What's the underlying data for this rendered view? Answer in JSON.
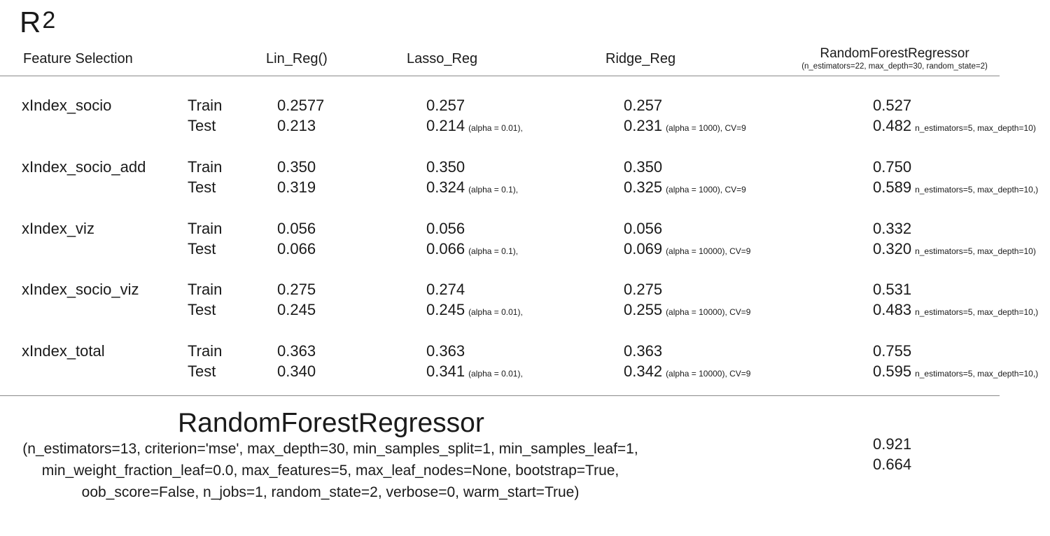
{
  "title": "R",
  "title_sup": "2",
  "headers": {
    "feature_selection": "Feature Selection",
    "lin": "Lin_Reg()",
    "lasso": "Lasso_Reg",
    "ridge": "Ridge_Reg",
    "rf": "RandomForestRegressor",
    "rf_params": "(n_estimators=22, max_depth=30, random_state=2)"
  },
  "rows": [
    {
      "feature": "xIndex_socio",
      "train_label": "Train",
      "test_label": "Test",
      "lin": {
        "train": "0.2577",
        "test": "0.213"
      },
      "lasso": {
        "train": "0.257",
        "test": "0.214",
        "note": "(alpha = 0.01),"
      },
      "ridge": {
        "train": "0.257",
        "test": "0.231",
        "note": "(alpha = 1000), CV=9"
      },
      "rf": {
        "train": "0.527",
        "test": "0.482",
        "note": "n_estimators=5, max_depth=10)"
      }
    },
    {
      "feature": "xIndex_socio_add",
      "train_label": "Train",
      "test_label": "Test",
      "lin": {
        "train": "0.350",
        "test": "0.319"
      },
      "lasso": {
        "train": "0.350",
        "test": "0.324",
        "note": "(alpha = 0.1),"
      },
      "ridge": {
        "train": "0.350",
        "test": "0.325",
        "note": "(alpha = 1000), CV=9"
      },
      "rf": {
        "train": "0.750",
        "test": "0.589",
        "note": "n_estimators=5, max_depth=10,)"
      }
    },
    {
      "feature": "xIndex_viz",
      "train_label": "Train",
      "test_label": "Test",
      "lin": {
        "train": "0.056",
        "test": "0.066"
      },
      "lasso": {
        "train": "0.056",
        "test": "0.066",
        "note": "(alpha = 0.1),"
      },
      "ridge": {
        "train": "0.056",
        "test": "0.069",
        "note": "(alpha = 10000), CV=9"
      },
      "rf": {
        "train": "0.332",
        "test": "0.320",
        "note": "n_estimators=5, max_depth=10)"
      }
    },
    {
      "feature": "xIndex_socio_viz",
      "train_label": "Train",
      "test_label": "Test",
      "lin": {
        "train": "0.275",
        "test": "0.245"
      },
      "lasso": {
        "train": "0.274",
        "test": "0.245",
        "note": "(alpha = 0.01),"
      },
      "ridge": {
        "train": "0.275",
        "test": "0.255",
        "note": "(alpha = 10000), CV=9"
      },
      "rf": {
        "train": "0.531",
        "test": "0.483",
        "note": "n_estimators=5, max_depth=10,)"
      }
    },
    {
      "feature": "xIndex_total",
      "train_label": "Train",
      "test_label": "Test",
      "lin": {
        "train": "0.363",
        "test": "0.340"
      },
      "lasso": {
        "train": "0.363",
        "test": "0.341",
        "note": "(alpha = 0.01),"
      },
      "ridge": {
        "train": "0.363",
        "test": "0.342",
        "note": "(alpha = 10000), CV=9"
      },
      "rf": {
        "train": "0.755",
        "test": "0.595",
        "note": "n_estimators=5, max_depth=10,)"
      }
    }
  ],
  "bottom": {
    "title": "RandomForestRegressor",
    "params": [
      "(n_estimators=13, criterion='mse', max_depth=30, min_samples_split=1, min_samples_leaf=1,",
      "min_weight_fraction_leaf=0.0, max_features=5, max_leaf_nodes=None, bootstrap=True,",
      "oob_score=False, n_jobs=1, random_state=2, verbose=0, warm_start=True)"
    ],
    "train": "0.921",
    "test": "0.664"
  }
}
